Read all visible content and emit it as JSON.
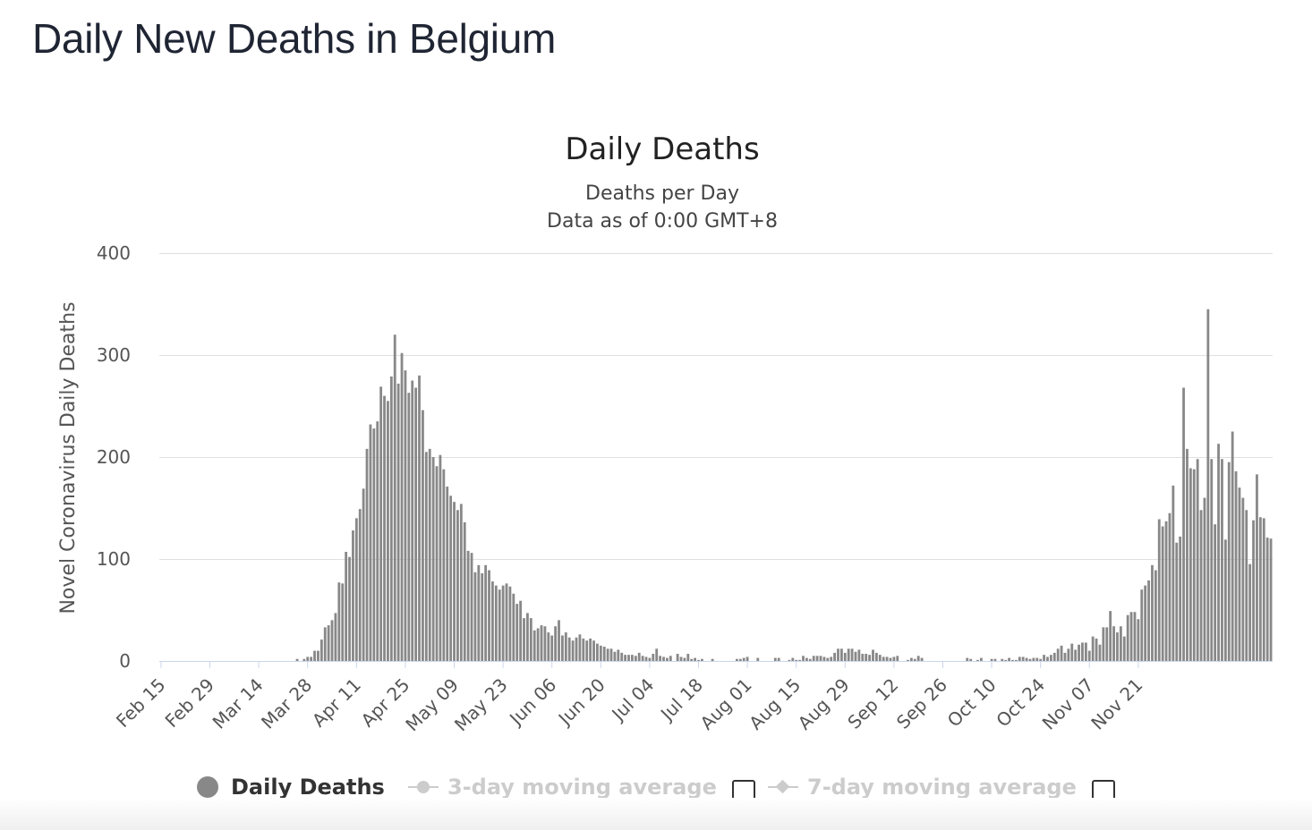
{
  "page": {
    "heading": "Daily New Deaths in Belgium"
  },
  "legend": {
    "daily_deaths": "Daily Deaths",
    "avg3": "3-day moving average",
    "avg7": "7-day moving average"
  },
  "colors": {
    "bar": "#888888",
    "grid": "#e0e0e0",
    "axis": "#ccd6eb",
    "legend_off": "#cccccc"
  },
  "chart_data": {
    "type": "bar",
    "title": "Daily Deaths",
    "subtitle_lines": [
      "Deaths per Day",
      "Data as of 0:00 GMT+8"
    ],
    "ylabel": "Novel Coronavirus Daily Deaths",
    "xlabel": "",
    "ylim": [
      0,
      400
    ],
    "yticks": [
      0,
      100,
      200,
      300,
      400
    ],
    "grid": true,
    "legend_position": "bottom",
    "start_date": "Feb 15",
    "xtick_labels": [
      "Feb 15",
      "Feb 29",
      "Mar 14",
      "Mar 28",
      "Apr 11",
      "Apr 25",
      "May 09",
      "May 23",
      "Jun 06",
      "Jun 20",
      "Jul 04",
      "Jul 18",
      "Aug 01",
      "Aug 15",
      "Aug 29",
      "Sep 12",
      "Sep 26",
      "Oct 10",
      "Oct 24",
      "Nov 07",
      "Nov 21"
    ],
    "series": [
      {
        "name": "Daily Deaths",
        "values": [
          0,
          0,
          0,
          0,
          0,
          0,
          0,
          0,
          0,
          0,
          0,
          0,
          0,
          0,
          0,
          0,
          0,
          0,
          0,
          0,
          0,
          0,
          0,
          0,
          0,
          0,
          0,
          0,
          0,
          0,
          0,
          0,
          0,
          0,
          0,
          0,
          0,
          0,
          0,
          2,
          0,
          2,
          4,
          4,
          10,
          10,
          21,
          33,
          35,
          40,
          47,
          77,
          76,
          107,
          102,
          128,
          140,
          149,
          169,
          208,
          232,
          228,
          235,
          269,
          260,
          255,
          279,
          320,
          272,
          302,
          285,
          263,
          275,
          268,
          280,
          246,
          205,
          208,
          200,
          191,
          202,
          188,
          171,
          162,
          156,
          148,
          154,
          136,
          108,
          106,
          87,
          94,
          86,
          94,
          89,
          78,
          74,
          70,
          74,
          76,
          73,
          66,
          56,
          59,
          42,
          47,
          42,
          30,
          32,
          35,
          34,
          28,
          25,
          34,
          40,
          25,
          28,
          23,
          20,
          23,
          26,
          22,
          20,
          22,
          20,
          17,
          15,
          14,
          12,
          12,
          9,
          11,
          8,
          6,
          6,
          6,
          5,
          8,
          5,
          4,
          3,
          7,
          12,
          5,
          4,
          3,
          5,
          0,
          7,
          4,
          3,
          7,
          2,
          3,
          1,
          2,
          0,
          0,
          2,
          0,
          0,
          0,
          0,
          0,
          0,
          2,
          2,
          3,
          4,
          0,
          0,
          3,
          0,
          0,
          0,
          0,
          3,
          3,
          0,
          0,
          1,
          3,
          1,
          1,
          5,
          3,
          2,
          5,
          5,
          5,
          4,
          3,
          4,
          8,
          12,
          12,
          8,
          12,
          12,
          9,
          11,
          7,
          7,
          6,
          11,
          8,
          6,
          4,
          4,
          3,
          4,
          5,
          0,
          0,
          1,
          3,
          2,
          5,
          3,
          0,
          0,
          0,
          0,
          0,
          0,
          0,
          0,
          0,
          0,
          0,
          0,
          3,
          2,
          0,
          1,
          3,
          0,
          0,
          2,
          2,
          0,
          2,
          1,
          3,
          1,
          1,
          4,
          4,
          3,
          2,
          3,
          3,
          2,
          6,
          4,
          6,
          8,
          12,
          15,
          8,
          12,
          17,
          11,
          16,
          18,
          18,
          10,
          24,
          22,
          16,
          33,
          33,
          49,
          34,
          28,
          34,
          24,
          45,
          48,
          48,
          41,
          70,
          74,
          79,
          94,
          89,
          139,
          132,
          137,
          145,
          172,
          116,
          122,
          268,
          208,
          189,
          188,
          198,
          148,
          160,
          345,
          198,
          134,
          213,
          198,
          119,
          195,
          225,
          186,
          170,
          160,
          148,
          95,
          138,
          183,
          141,
          140,
          121,
          120
        ]
      }
    ]
  }
}
